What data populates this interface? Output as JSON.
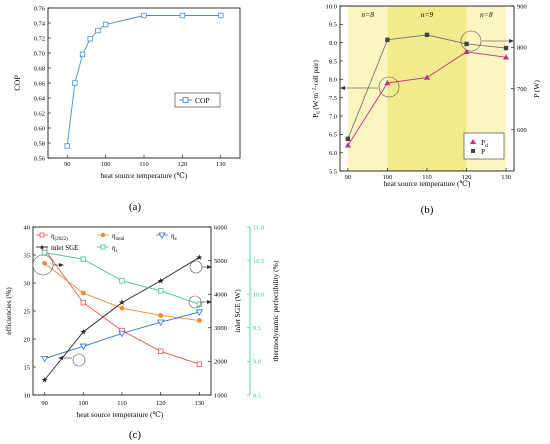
{
  "colors": {
    "cop": "#4a90c8",
    "pd": "#c8288c",
    "p": "#444444",
    "eta_2022": "#e8554e",
    "eta_total": "#f08c2c",
    "eta_e": "#2f6fd8",
    "sge": "#222222",
    "eta_s": "#3cc68c",
    "band_light": "#fbf5c0",
    "band_dark": "#f1eb8c",
    "right_axis_c": "#3cc68c"
  },
  "chart_data": [
    {
      "panel": "(a)",
      "type": "line",
      "xlabel": "heat source temperature (°C)",
      "ylabel": "COP",
      "xlim": [
        85,
        135
      ],
      "ylim": [
        0.56,
        0.76
      ],
      "xticks": [
        90,
        100,
        110,
        120,
        130
      ],
      "yticks": [
        0.56,
        0.58,
        0.6,
        0.62,
        0.64,
        0.66,
        0.68,
        0.7,
        0.72,
        0.74,
        0.76
      ],
      "legend_position": "right-center",
      "series": [
        {
          "name": "COP",
          "marker": "square-open",
          "x": [
            90,
            92,
            94,
            96,
            98,
            100,
            110,
            120,
            130
          ],
          "y": [
            0.576,
            0.66,
            0.698,
            0.719,
            0.73,
            0.738,
            0.75,
            0.75,
            0.75
          ]
        }
      ]
    },
    {
      "panel": "(b)",
      "type": "line",
      "xlabel": "heat source temperature (°C)",
      "ylabel": "P_d (W·m⁻²·cell pair)",
      "ylabel_right": "P (W)",
      "xlim": [
        88,
        132
      ],
      "xticks": [
        90,
        100,
        110,
        120,
        130
      ],
      "ylim": [
        5.5,
        10.0
      ],
      "yticks": [
        5.5,
        6.0,
        6.5,
        7.0,
        7.5,
        8.0,
        8.5,
        9.0,
        9.5,
        10.0
      ],
      "ylim_right": [
        500,
        900
      ],
      "yticks_right": [
        600,
        700,
        800,
        900
      ],
      "bands": [
        {
          "from": 90,
          "to": 100,
          "label": "n=8",
          "shade": "light"
        },
        {
          "from": 100,
          "to": 120,
          "label": "n=9",
          "shade": "dark"
        },
        {
          "from": 120,
          "to": 130,
          "label": "n=8",
          "shade": "light"
        }
      ],
      "series": [
        {
          "name": "P_d",
          "axis": "left",
          "marker": "triangle",
          "x": [
            90,
            100,
            110,
            120,
            130
          ],
          "y": [
            6.2,
            7.9,
            8.05,
            8.75,
            8.6
          ]
        },
        {
          "name": "P",
          "axis": "right",
          "marker": "square",
          "x": [
            90,
            100,
            110,
            120,
            130
          ],
          "y": [
            578,
            818,
            830,
            808,
            798
          ]
        }
      ]
    },
    {
      "panel": "(c)",
      "type": "line",
      "xlabel": "heat source temperature (°C)",
      "ylabel": "efficiencies (%)",
      "ylabel_right1": "inlet SGE (W)",
      "ylabel_right2": "thermodynamic perfectibility (%)",
      "xlim": [
        87,
        133
      ],
      "xticks": [
        90,
        100,
        110,
        120,
        130
      ],
      "ylim": [
        10,
        40
      ],
      "yticks": [
        10,
        15,
        20,
        25,
        30,
        35,
        40
      ],
      "ylim_right1": [
        1000,
        6000
      ],
      "yticks_right1": [
        1000,
        2000,
        3000,
        4000,
        5000,
        6000
      ],
      "ylim_right2": [
        8.5,
        11.0
      ],
      "yticks_right2": [
        8.5,
        9.0,
        9.5,
        10.0,
        10.5,
        11.0
      ],
      "series": [
        {
          "name": "η(2022)",
          "axis": "left",
          "marker": "square-open",
          "x": [
            90,
            100,
            110,
            120,
            130
          ],
          "y": [
            36,
            26.5,
            21.5,
            17.8,
            15.5
          ]
        },
        {
          "name": "η_total",
          "axis": "left",
          "marker": "circle",
          "x": [
            90,
            100,
            110,
            120,
            130
          ],
          "y": [
            33.5,
            28.2,
            25.5,
            24.2,
            23.3
          ]
        },
        {
          "name": "η_e",
          "axis": "left",
          "marker": "triangle-down-open",
          "x": [
            90,
            100,
            110,
            120,
            130
          ],
          "y": [
            16.5,
            18.7,
            21,
            23,
            24.8
          ]
        },
        {
          "name": "inlet SGE",
          "axis": "right1",
          "marker": "star",
          "x": [
            90,
            100,
            110,
            120,
            130
          ],
          "y": [
            1450,
            2880,
            3750,
            4400,
            5100
          ]
        },
        {
          "name": "η_s",
          "axis": "right2",
          "marker": "square-open",
          "x": [
            90,
            100,
            110,
            120,
            130
          ],
          "y": [
            10.62,
            10.52,
            10.2,
            10.05,
            9.85
          ]
        }
      ]
    }
  ],
  "text": {
    "a": {
      "xlabel": "heat source temperature (℃)",
      "ylabel": "COP",
      "legend": "COP",
      "caption": "(a)"
    },
    "b": {
      "xlabel": "heat source temperature (℃)",
      "ylabel": "P",
      "ylabel_sub": "d",
      "ylabel_tail": " (W·m",
      "ylabel_sup": "−2",
      "ylabel_end": "·cell pair)",
      "ylabel_right": "P (W)",
      "legend_pd": "P",
      "legend_pd_sub": "d",
      "legend_p": "P",
      "caption": "(b)"
    },
    "c": {
      "xlabel": "heat source temperature (℃)",
      "ylabel": "efficiencies (%)",
      "ylabel_right1": "inlet SGE (W)",
      "ylabel_right2": "thermodynamic perfectibility  (%)",
      "legend_eta2022": "η",
      "legend_eta2022_sub": "(2022)",
      "legend_total": "η",
      "legend_total_sub": "total",
      "legend_e": "η",
      "legend_e_sub": "e",
      "legend_sge": "inlet SGE",
      "legend_s": "η",
      "legend_s_sub": "s",
      "caption": "(c)"
    }
  }
}
